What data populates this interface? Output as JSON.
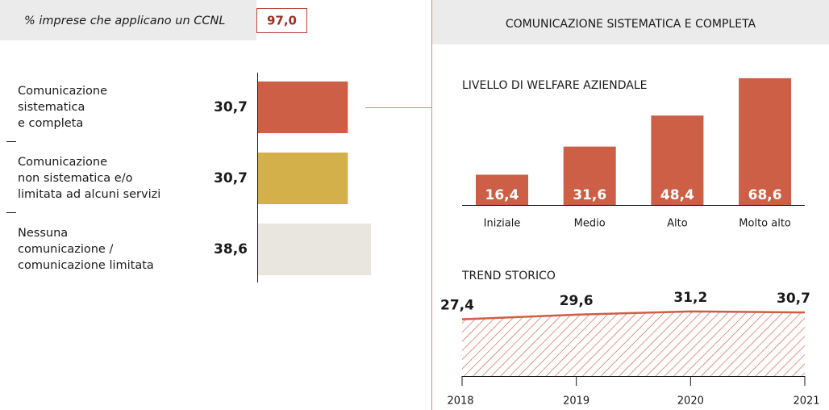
{
  "header": {
    "label": "% imprese che applicano un CCNL",
    "value": "97,0"
  },
  "panel_title": "COMUNICAZIONE SISTEMATICA E COMPLETA",
  "chart_data": [
    {
      "type": "hbar",
      "categories": [
        "Comunicazione\nsistematica\ne completa",
        "Comunicazione\nnon sistematica e/o\nlimitata ad alcuni servizi",
        "Nessuna\ncomunicazione /\ncomunicazione limitata"
      ],
      "values": [
        30.7,
        30.7,
        38.6
      ],
      "value_labels": [
        "30,7",
        "30,7",
        "38,6"
      ],
      "colors": [
        "#cd5f47",
        "#d4b04a",
        "#e9e6df"
      ]
    },
    {
      "type": "bar",
      "title": "LIVELLO DI WELFARE AZIENDALE",
      "categories": [
        "Iniziale",
        "Medio",
        "Alto",
        "Molto alto"
      ],
      "values": [
        16.4,
        31.6,
        48.4,
        68.6
      ],
      "value_labels": [
        "16,4",
        "31,6",
        "48,4",
        "68,6"
      ],
      "color": "#cd5f47"
    },
    {
      "type": "area",
      "title": "TREND STORICO",
      "x": [
        2018,
        2019,
        2020,
        2021
      ],
      "values": [
        27.4,
        29.6,
        31.2,
        30.7
      ],
      "value_labels": [
        "27,4",
        "29,6",
        "31,2",
        "30,7"
      ],
      "xlim": [
        2018,
        2021
      ],
      "xticks": [
        2018,
        2019,
        2020,
        2021
      ],
      "color": "#cd5f47"
    }
  ]
}
